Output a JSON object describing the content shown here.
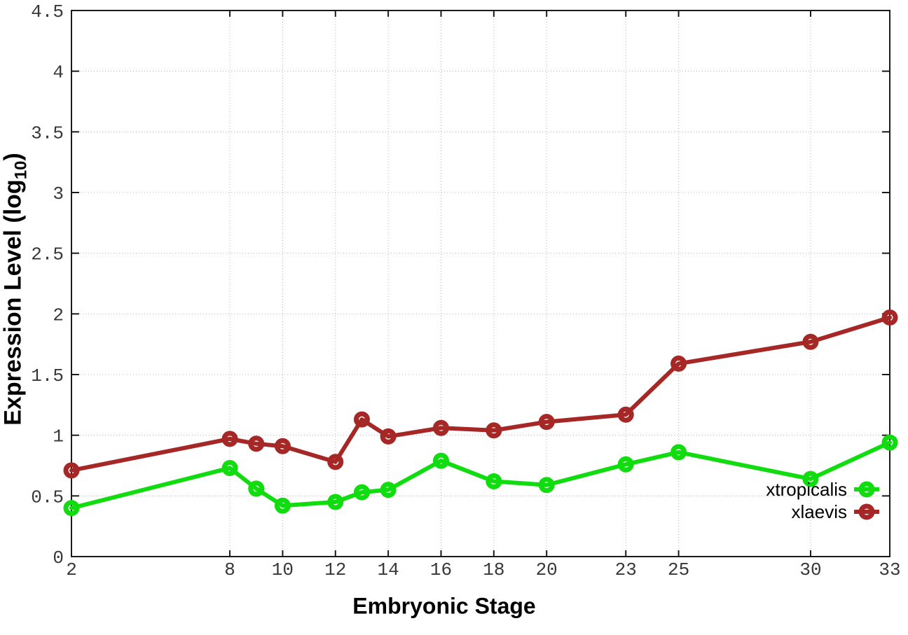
{
  "chart_data": {
    "type": "line",
    "title": "",
    "xlabel": "Embryonic Stage",
    "ylabel": {
      "prefix": "Expression Level (log",
      "sub": "10",
      "suffix": ")"
    },
    "x": [
      2,
      8,
      9,
      10,
      12,
      13,
      14,
      16,
      18,
      20,
      23,
      25,
      30,
      33
    ],
    "xticks": [
      2,
      8,
      10,
      12,
      14,
      16,
      18,
      20,
      23,
      25,
      30,
      33
    ],
    "yticks": [
      "0",
      "0.5",
      "1",
      "1.5",
      "2",
      "2.5",
      "3",
      "3.5",
      "4",
      "4.5"
    ],
    "xlim": [
      2,
      33
    ],
    "ylim": [
      0,
      4.5
    ],
    "grid": true,
    "legend_position": "bottom-right",
    "series": [
      {
        "name": "xtropicalis",
        "color": "#10dc10",
        "values": [
          0.4,
          0.73,
          0.56,
          0.42,
          0.45,
          0.53,
          0.55,
          0.79,
          0.62,
          0.59,
          0.76,
          0.86,
          0.64,
          0.94
        ]
      },
      {
        "name": "xlaevis",
        "color": "#a52826",
        "values": [
          0.71,
          0.97,
          0.93,
          0.91,
          0.78,
          1.13,
          0.99,
          1.06,
          1.04,
          1.11,
          1.17,
          1.59,
          1.77,
          1.97
        ]
      }
    ]
  }
}
